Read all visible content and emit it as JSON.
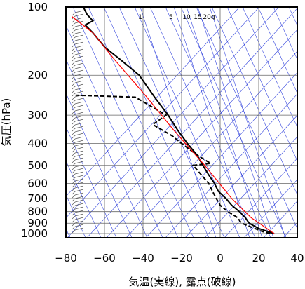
{
  "chart_data": {
    "type": "skew-t",
    "xlabel": "気温(実線), 露点(破線)",
    "ylabel": "気圧(hPa)",
    "xlim": [
      -80,
      40
    ],
    "ylim": [
      1050,
      100
    ],
    "y_scale": "log",
    "x_ticks": [
      "−80",
      "−60",
      "−40",
      "−20",
      "0",
      "20",
      "40"
    ],
    "x_tick_values": [
      -80,
      -60,
      -40,
      -20,
      0,
      20,
      40
    ],
    "y_ticks": [
      "100",
      "200",
      "300",
      "400",
      "500",
      "600",
      "700",
      "800",
      "900",
      "1000"
    ],
    "y_tick_values": [
      100,
      200,
      300,
      400,
      500,
      600,
      700,
      800,
      900,
      1000
    ],
    "mixing_ratio_labels": [
      "1",
      "5",
      "10",
      "15",
      "20g"
    ],
    "mixing_ratio_values": [
      1,
      5,
      10,
      15,
      20
    ],
    "grid": true,
    "series": [
      {
        "style": "solid",
        "color": "#000000",
        "points": [
          [
            28,
            1000
          ],
          [
            20,
            950
          ],
          [
            15,
            900
          ],
          [
            13,
            850
          ],
          [
            10,
            800
          ],
          [
            6,
            750
          ],
          [
            3,
            700
          ],
          [
            -1,
            650
          ],
          [
            -3,
            600
          ],
          [
            -6,
            550
          ],
          [
            -9,
            500
          ],
          [
            -12,
            450
          ],
          [
            -17,
            400
          ],
          [
            -22,
            350
          ],
          [
            -27,
            300
          ],
          [
            -34,
            250
          ],
          [
            -42,
            200
          ],
          [
            -52,
            170
          ],
          [
            -60,
            150
          ],
          [
            -66,
            130
          ],
          [
            -70,
            120
          ],
          [
            -66,
            115
          ],
          [
            -69,
            108
          ],
          [
            -71,
            100
          ]
        ]
      },
      {
        "style": "dashed",
        "color": "#000000",
        "points": [
          [
            26,
            1000
          ],
          [
            22,
            980
          ],
          [
            18,
            950
          ],
          [
            11,
            900
          ],
          [
            9,
            850
          ],
          [
            4,
            800
          ],
          [
            0,
            750
          ],
          [
            -2,
            700
          ],
          [
            -4,
            650
          ],
          [
            -6,
            600
          ],
          [
            -14,
            500
          ],
          [
            -5,
            490
          ],
          [
            -12,
            450
          ],
          [
            -20,
            400
          ],
          [
            -25,
            370
          ],
          [
            -35,
            330
          ],
          [
            -28,
            300
          ],
          [
            -44,
            250
          ],
          [
            -75,
            245
          ]
        ]
      },
      {
        "style": "solid",
        "color": "#ff0000",
        "points": [
          [
            28,
            1000
          ],
          [
            16,
            850
          ],
          [
            6,
            700
          ],
          [
            -8,
            500
          ],
          [
            -24,
            350
          ],
          [
            -38,
            250
          ],
          [
            -55,
            170
          ],
          [
            -66,
            130
          ],
          [
            -77,
            110
          ]
        ]
      }
    ]
  }
}
